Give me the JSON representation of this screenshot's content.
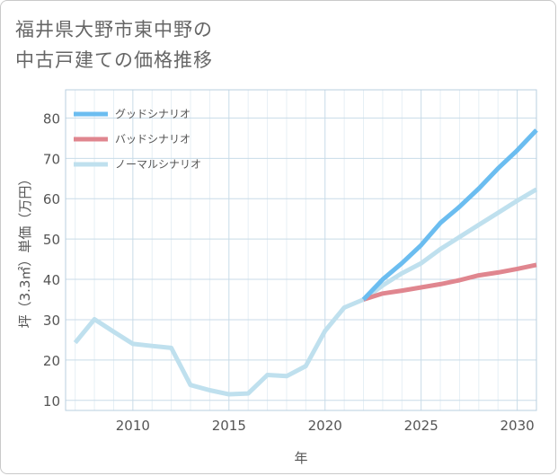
{
  "title_line1": "福井県大野市東中野の",
  "title_line2": "中古戸建ての価格推移",
  "chart_data": {
    "type": "line",
    "xlabel": "年",
    "ylabel": "坪（3.3㎡）単価（万円）",
    "xlim": [
      2006.5,
      2031
    ],
    "ylim": [
      7.5,
      87
    ],
    "xticks": [
      2010,
      2015,
      2020,
      2025,
      2030
    ],
    "yticks": [
      10,
      20,
      30,
      40,
      50,
      60,
      70,
      80
    ],
    "grid": true,
    "legend_position": "top-left",
    "series": [
      {
        "name": "グッドシナリオ",
        "color": "#6bbdf0",
        "x": [
          2022,
          2023,
          2024,
          2025,
          2026,
          2027,
          2028,
          2029,
          2030,
          2031
        ],
        "y": [
          35.0,
          40.0,
          44.0,
          48.5,
          54.0,
          58.0,
          62.5,
          67.5,
          72.0,
          77.0
        ]
      },
      {
        "name": "バッドシナリオ",
        "color": "#e0868f",
        "x": [
          2022,
          2023,
          2024,
          2025,
          2026,
          2027,
          2028,
          2029,
          2030,
          2031
        ],
        "y": [
          35.0,
          36.5,
          37.2,
          38.0,
          38.8,
          39.8,
          41.0,
          41.7,
          42.6,
          43.6
        ]
      },
      {
        "name": "ノーマルシナリオ",
        "color": "#bfe0ee",
        "x": [
          2007,
          2008,
          2009,
          2010,
          2011,
          2012,
          2013,
          2014,
          2015,
          2016,
          2017,
          2018,
          2019,
          2020,
          2021,
          2022,
          2023,
          2024,
          2025,
          2026,
          2027,
          2028,
          2029,
          2030,
          2031
        ],
        "y": [
          24.3,
          30.1,
          27.0,
          24.0,
          23.5,
          23.0,
          13.8,
          12.5,
          11.5,
          11.7,
          16.3,
          16.0,
          18.5,
          27.2,
          33.0,
          35.0,
          38.5,
          41.5,
          44.0,
          47.5,
          50.5,
          53.5,
          56.5,
          59.5,
          62.3
        ]
      }
    ]
  }
}
